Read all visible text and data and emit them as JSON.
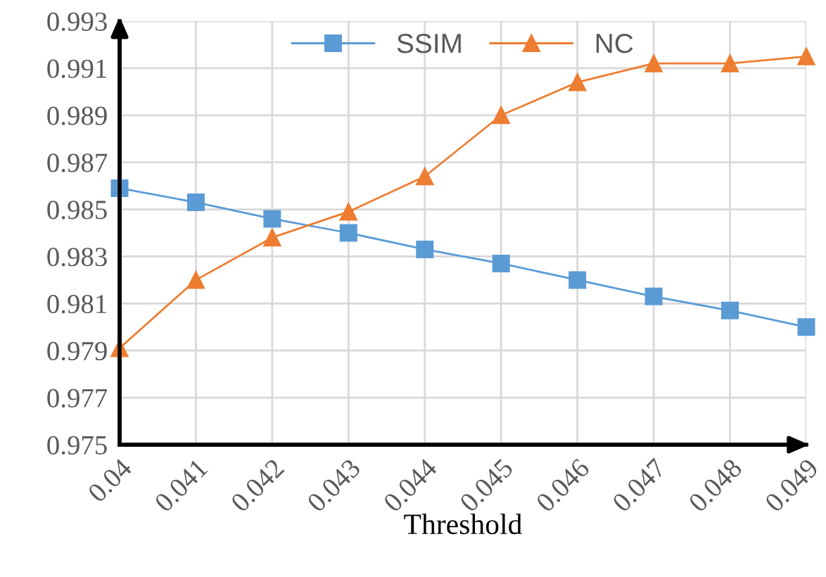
{
  "chart_data": {
    "type": "line",
    "xlabel": "Threshold",
    "categories": [
      "0.04",
      "0.041",
      "0.042",
      "0.043",
      "0.044",
      "0.045",
      "0.046",
      "0.047",
      "0.048",
      "0.049"
    ],
    "series": [
      {
        "name": "SSIM",
        "color": "#5b9bd5",
        "marker": "square",
        "values": [
          0.9859,
          0.9853,
          0.9846,
          0.984,
          0.9833,
          0.9827,
          0.982,
          0.9813,
          0.9807,
          0.98
        ]
      },
      {
        "name": "NC",
        "color": "#ed7d31",
        "marker": "triangle",
        "values": [
          0.9791,
          0.982,
          0.9838,
          0.9849,
          0.9864,
          0.989,
          0.9904,
          0.9912,
          0.9912,
          0.9915
        ]
      }
    ],
    "ylim": [
      0.975,
      0.993
    ],
    "yticks": [
      0.975,
      0.977,
      0.979,
      0.981,
      0.983,
      0.985,
      0.987,
      0.989,
      0.991,
      0.993
    ],
    "grid": true,
    "legend": "top",
    "line_style": "solid"
  }
}
